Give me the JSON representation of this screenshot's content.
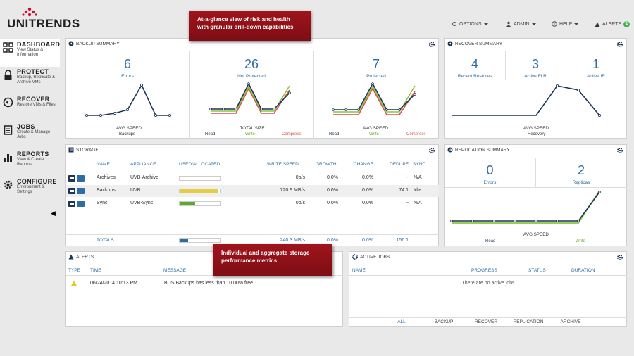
{
  "brand": {
    "logo_text": "UNITRENDS"
  },
  "topnav": {
    "options": "OPTIONS",
    "admin": "ADMIN",
    "help": "HELP",
    "alerts": "ALERTS",
    "alerts_count": "1"
  },
  "callouts": {
    "top": "At-a-glance view of risk and health with granular drill-down capabilities",
    "bottom": "Individual and aggregate storage performance metrics"
  },
  "sidebar": {
    "items": [
      {
        "title": "DASHBOARD",
        "sub": "View Status & Information",
        "icon": "dashboard-grid-icon"
      },
      {
        "title": "PROTECT",
        "sub": "Backup, Replicate & Archive VMs",
        "icon": "lock-icon"
      },
      {
        "title": "RECOVER",
        "sub": "Restore VMs & Files",
        "icon": "recover-arrow-icon"
      },
      {
        "title": "JOBS",
        "sub": "Create & Manage Jobs",
        "icon": "clipboard-icon"
      },
      {
        "title": "REPORTS",
        "sub": "View & Create Reports",
        "icon": "bar-chart-icon"
      },
      {
        "title": "CONFIGURE",
        "sub": "Environment & Settings",
        "icon": "gear-icon"
      }
    ]
  },
  "backup_summary": {
    "title": "BACKUP SUMMARY",
    "stats": [
      {
        "value": "6",
        "label": "Errors"
      },
      {
        "value": "26",
        "label": "Not Protected"
      },
      {
        "value": "7",
        "label": "Protected"
      }
    ],
    "charts": [
      {
        "caption": "AVG SPEED",
        "legend": [
          "Backups"
        ]
      },
      {
        "caption": "TOTAL SIZE",
        "legend": [
          "Read",
          "Write",
          "Compress"
        ]
      },
      {
        "caption": "AVG SPEED",
        "legend": [
          "Read",
          "Write",
          "Compress"
        ]
      }
    ]
  },
  "recover_summary": {
    "title": "RECOVER SUMMARY",
    "stats": [
      {
        "value": "4",
        "label": "Recent Restores"
      },
      {
        "value": "3",
        "label": "Active FLR"
      },
      {
        "value": "1",
        "label": "Active IR"
      }
    ],
    "chart": {
      "caption": "AVG SPEED",
      "legend": [
        "Recovery"
      ]
    }
  },
  "storage": {
    "title": "STORAGE",
    "headers": {
      "name": "NAME",
      "appliance": "APPLIANCE",
      "used": "USED/ALLOCATED",
      "write_speed": "WRITE SPEED",
      "growth": "GROWTH",
      "change": "CHANGE",
      "dedupe": "DEDUPE",
      "sync": "SYNC"
    },
    "rows": [
      {
        "name": "Archives",
        "appliance": "UVB-Archive",
        "used_fraction": 0.02,
        "used_color": "#8cc63f",
        "write_speed": "0b/s",
        "growth": "0.0%",
        "change": "0.0%",
        "dedupe": "--",
        "sync": "N/A"
      },
      {
        "name": "Backups",
        "appliance": "UVB",
        "used_fraction": 0.95,
        "used_color": "#e2cd45",
        "write_speed": "720.9 MB/s",
        "growth": "0.0%",
        "change": "0.0%",
        "dedupe": "74:1",
        "sync": "Idle"
      },
      {
        "name": "Sync",
        "appliance": "UVB-Sync",
        "used_fraction": 0.38,
        "used_color": "#5aab2e",
        "write_speed": "0b/s",
        "growth": "0.0%",
        "change": "0.0%",
        "dedupe": "--",
        "sync": "N/A"
      }
    ],
    "totals": {
      "label": "TOTALS",
      "used_fraction": 0.2,
      "write_speed": "240.3 MB/s",
      "growth": "0.0%",
      "change": "0.0%",
      "dedupe": "156:1"
    }
  },
  "replication_summary": {
    "title": "REPLICATION SUMMARY",
    "stats": [
      {
        "value": "0",
        "label": "Errors"
      },
      {
        "value": "2",
        "label": "Replicas"
      }
    ],
    "chart": {
      "caption": "AVG SPEED",
      "legend": [
        "Read",
        "Write"
      ]
    }
  },
  "alerts_panel": {
    "title": "ALERTS",
    "headers": {
      "type": "TYPE",
      "time": "TIME",
      "message": "MESSAGE"
    },
    "rows": [
      {
        "time": "06/24/2014 10:13 PM",
        "message": "BDS Backups has less than 10.00% free",
        "severity": "warning"
      }
    ]
  },
  "active_jobs": {
    "title": "ACTIVE JOBS",
    "headers": {
      "name": "NAME",
      "progress": "PROGRESS",
      "status": "STATUS",
      "duration": "DURATION"
    },
    "empty": "There are no active jobs",
    "tabs": [
      "ALL",
      "BACKUP",
      "RECOVER",
      "REPLICATION",
      "ARCHIVE"
    ]
  },
  "colors": {
    "accent": "#2e6da4",
    "navy": "#1d3557",
    "write": "#8cc63f",
    "compress": "#d9534f",
    "callout": "#8b1018"
  }
}
